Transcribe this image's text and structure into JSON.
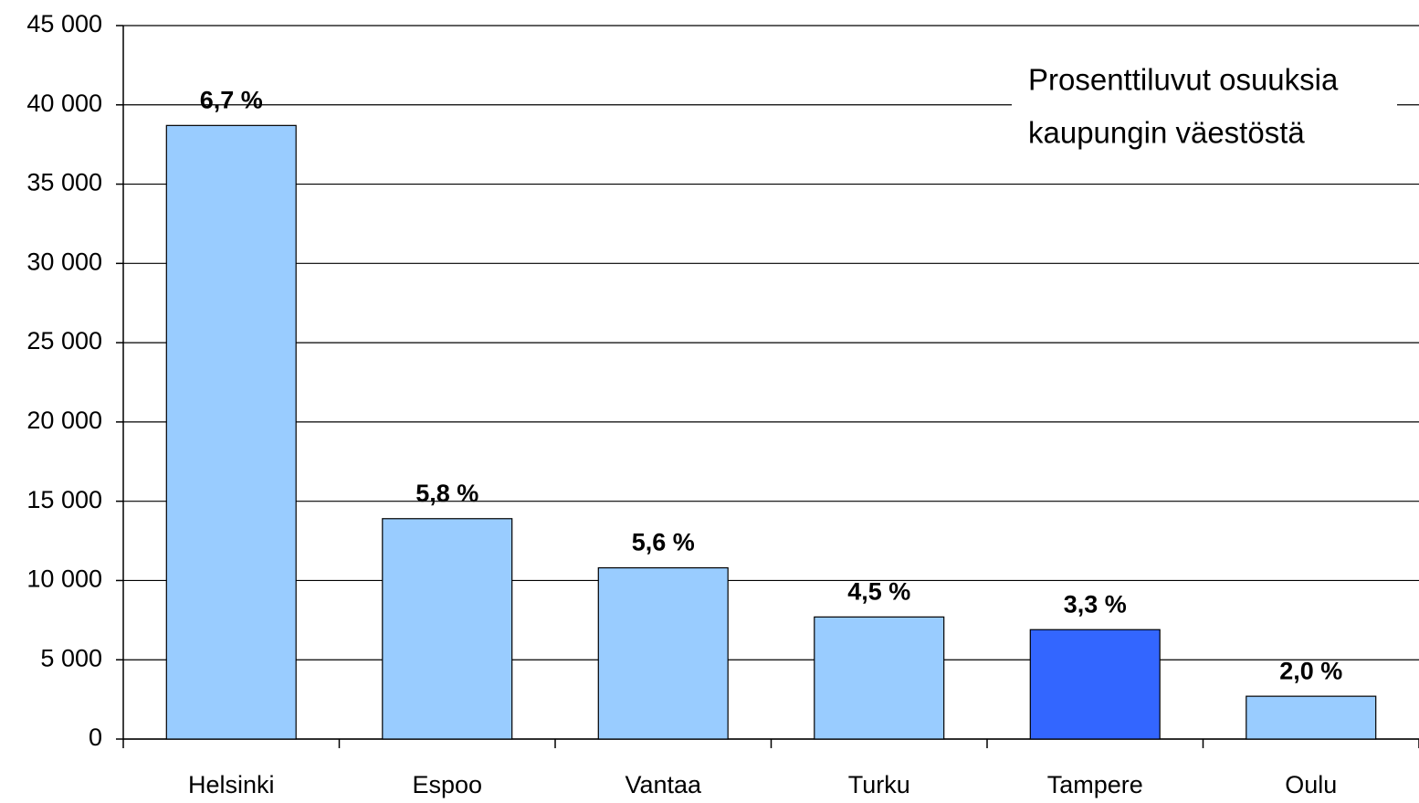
{
  "chart_data": {
    "type": "bar",
    "categories": [
      "Helsinki",
      "Espoo",
      "Vantaa",
      "Turku",
      "Tampere",
      "Oulu"
    ],
    "values": [
      38700,
      13900,
      10800,
      7700,
      6900,
      2700
    ],
    "bar_labels": [
      "6,7 %",
      "5,8 %",
      "5,6 %",
      "4,5 %",
      "3,3 %",
      "2,0 %"
    ],
    "colors": [
      "#99ccff",
      "#99ccff",
      "#99ccff",
      "#99ccff",
      "#3366ff",
      "#99ccff"
    ],
    "annotation": [
      "Prosenttiluvut osuuksia",
      "kaupungin väestöstä"
    ],
    "ylim": [
      0,
      45000
    ],
    "yticks": [
      0,
      {
        "value": 5000,
        "label": "5 000"
      },
      {
        "value": 10000,
        "label": "10 000"
      },
      {
        "value": 15000,
        "label": "15 000"
      },
      {
        "value": 20000,
        "label": "20 000"
      },
      {
        "value": 25000,
        "label": "25 000"
      },
      {
        "value": 30000,
        "label": "30 000"
      },
      {
        "value": 35000,
        "label": "35 000"
      },
      {
        "value": 40000,
        "label": "40 000"
      },
      {
        "value": 45000,
        "label": "45 000"
      }
    ],
    "grid": true
  }
}
